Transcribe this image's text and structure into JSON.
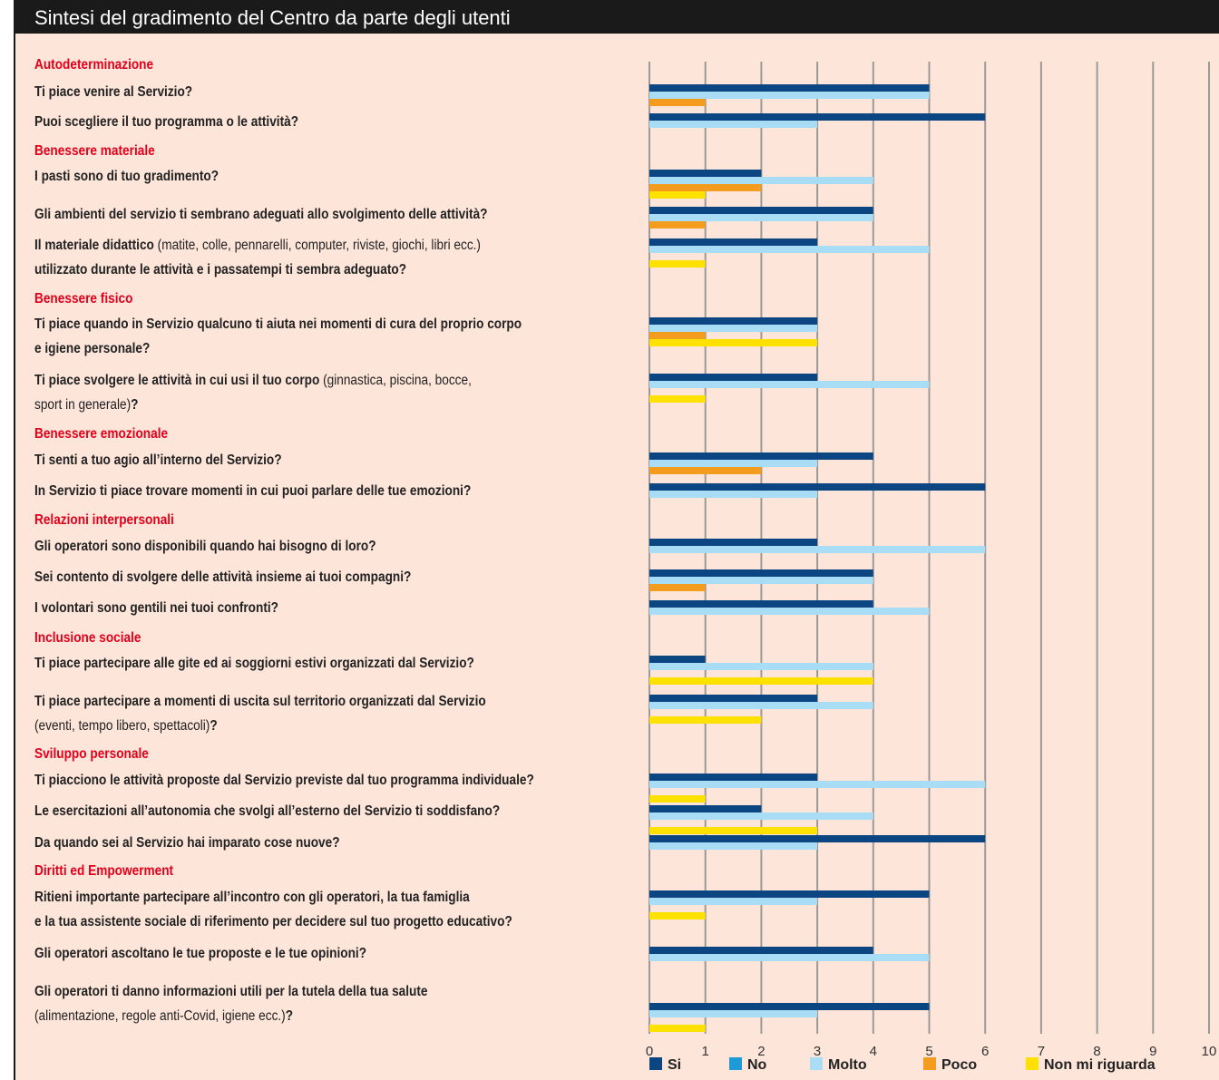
{
  "chart_data": {
    "type": "bar",
    "orientation": "horizontal",
    "title": "Sintesi del gradimento del Centro da parte degli utenti",
    "sections": [
      "Autodeterminazione",
      null,
      "Benessere materiale",
      null,
      null,
      "Benessere fisico",
      null,
      "Benessere emozionale",
      null,
      "Relazioni interpersonali",
      null,
      null,
      "Inclusione sociale",
      null,
      "Sviluppo personale",
      null,
      null,
      "Diritti ed Empowerment",
      null,
      null
    ],
    "categories": [
      "Ti piace venire al Servizio?",
      "Puoi scegliere il tuo programma o le attività?",
      "I pasti sono di tuo gradimento?",
      "Gli ambienti del servizio ti sembrano adeguati allo svolgimento delle attività?",
      "Il materiale didattico (matite, colle, pennarelli, computer, riviste, giochi, libri ecc.)\nutilizzato durante le attività e i passatempi ti sembra adeguato?",
      "Ti piace quando in Servizio qualcuno ti aiuta nei momenti di cura del proprio corpo\ne igiene personale?",
      "Ti piace svolgere le attività in cui usi il tuo corpo (ginnastica, piscina, bocce,\nsport in generale)?",
      "Ti senti a tuo agio all’interno del Servizio?",
      "In Servizio ti piace trovare momenti in cui puoi parlare delle tue emozioni?",
      "Gli operatori sono disponibili quando hai bisogno di loro?",
      "Sei contento di svolgere delle attività insieme ai tuoi compagni?",
      "I volontari sono gentili nei tuoi confronti?",
      "Ti piace partecipare alle gite ed ai soggiorni estivi organizzati dal Servizio?",
      "Ti piace partecipare a momenti di uscita sul territorio organizzati dal Servizio\n(eventi, tempo libero, spettacoli)?",
      "Ti piacciono le attività proposte dal Servizio previste dal tuo programma individuale?",
      "Le esercitazioni all’autonomia che svolgi all’esterno del Servizio ti soddisfano?",
      "Da quando sei al Servizio hai imparato cose nuove?",
      "Ritieni importante partecipare all’incontro con gli operatori, la tua famiglia\ne la tua assistente sociale di riferimento per decidere sul tuo progetto educativo?",
      "Gli operatori ascoltano le tue proposte e le tue opinioni?",
      "Gli operatori ti danno informazioni utili per la tutela della tua salute\n(alimentazione, regole anti-Covid, igiene ecc.)?"
    ],
    "series": [
      {
        "name": "Si",
        "color": "#0b4683",
        "values": [
          5,
          6,
          2,
          4,
          3,
          3,
          3,
          4,
          6,
          3,
          4,
          4,
          1,
          3,
          3,
          2,
          6,
          5,
          4,
          5
        ]
      },
      {
        "name": "No",
        "color": "#1e9ad6",
        "values": [
          0,
          0,
          0,
          0,
          0,
          0,
          0,
          0,
          0,
          0,
          0,
          0,
          0,
          0,
          0,
          0,
          0,
          0,
          0,
          0
        ]
      },
      {
        "name": "Molto",
        "color": "#a9ddf6",
        "values": [
          5,
          3,
          4,
          4,
          5,
          3,
          5,
          3,
          3,
          6,
          4,
          5,
          4,
          4,
          6,
          4,
          3,
          3,
          5,
          3
        ]
      },
      {
        "name": "Poco",
        "color": "#f49c1e",
        "values": [
          1,
          0,
          2,
          1,
          0,
          1,
          0,
          2,
          0,
          0,
          1,
          0,
          0,
          0,
          0,
          0,
          0,
          0,
          0,
          0
        ]
      },
      {
        "name": "Non mi riguarda",
        "color": "#ffe100",
        "values": [
          0,
          0,
          1,
          0,
          1,
          3,
          1,
          0,
          0,
          0,
          0,
          0,
          4,
          2,
          1,
          3,
          0,
          1,
          0,
          1
        ]
      }
    ],
    "xlim": [
      0,
      10
    ],
    "xticks": [
      0,
      1,
      2,
      3,
      4,
      5,
      6,
      7,
      8,
      9,
      10
    ],
    "grid": true,
    "legend": "bottom"
  }
}
